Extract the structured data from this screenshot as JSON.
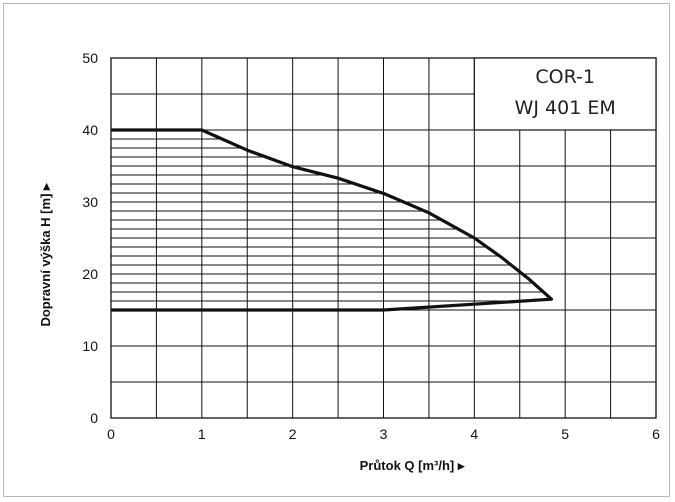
{
  "chart_data": {
    "type": "area",
    "title_lines": [
      "COR-1",
      "WJ 401 EM"
    ],
    "xlabel": "Průtok Q [m³/h] ▸",
    "ylabel": "Dopravní výška H [m] ▸",
    "xlim": [
      0,
      6
    ],
    "ylim": [
      0,
      50
    ],
    "x_ticks": [
      "0",
      "1",
      "2",
      "3",
      "4",
      "5",
      "6"
    ],
    "y_ticks": [
      "0",
      "10",
      "20",
      "30",
      "40",
      "50"
    ],
    "grid": true,
    "series": [
      {
        "values_xy": [
          [
            0,
            40
          ],
          [
            1,
            40
          ],
          [
            1.5,
            37.2
          ],
          [
            2,
            34.9
          ],
          [
            2.5,
            33.3
          ],
          [
            3,
            31.2
          ],
          [
            3.5,
            28.5
          ],
          [
            4,
            25
          ],
          [
            4.3,
            22.3
          ],
          [
            4.6,
            19.3
          ],
          [
            4.85,
            16.5
          ],
          [
            3,
            15
          ],
          [
            2,
            15
          ],
          [
            1,
            15
          ],
          [
            0,
            15
          ]
        ]
      }
    ],
    "hatch": {
      "direction": "horizontal",
      "y_from": 15,
      "y_to": 40,
      "step": 1.25
    }
  }
}
